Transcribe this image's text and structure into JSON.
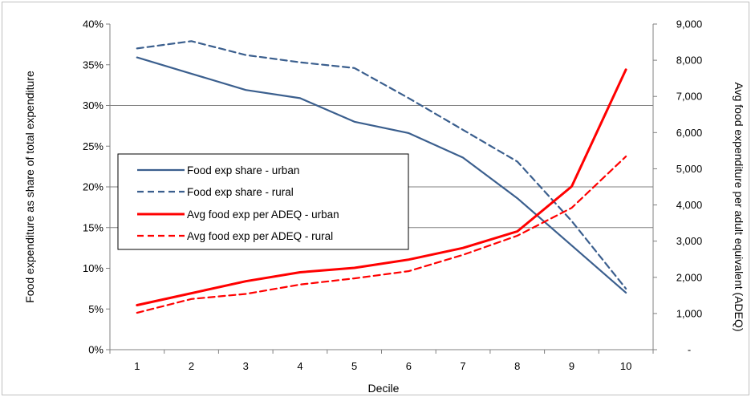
{
  "chart_data": {
    "type": "line",
    "title": "",
    "categories": [
      "1",
      "2",
      "3",
      "4",
      "5",
      "6",
      "7",
      "8",
      "9",
      "10"
    ],
    "xlabel": "Decile",
    "ylabel_left": "Food expenditure as share of total expenditure",
    "ylabel_right": "Avg food expenditure per adult equivalent (ADEQ)",
    "left_axis": {
      "ylim": [
        0,
        40
      ],
      "ticks": [
        0,
        5,
        10,
        15,
        20,
        25,
        30,
        35,
        40
      ],
      "tick_labels": [
        "0%",
        "5%",
        "10%",
        "15%",
        "20%",
        "25%",
        "30%",
        "35%",
        "40%"
      ]
    },
    "right_axis": {
      "ylim": [
        0,
        9000
      ],
      "ticks": [
        0,
        1000,
        2000,
        3000,
        4000,
        5000,
        6000,
        7000,
        8000,
        9000
      ],
      "tick_labels": [
        "-",
        "1,000",
        "2,000",
        "3,000",
        "4,000",
        "5,000",
        "6,000",
        "7,000",
        "8,000",
        "9,000"
      ]
    },
    "grid": "horizontal major lines on left axis at 15%, 20%, 30%",
    "legend_position": "left-middle",
    "series": [
      {
        "name": "Food exp share - urban",
        "axis": "left",
        "color": "#3b5f8e",
        "dash": "solid",
        "values": [
          35.9,
          33.9,
          31.9,
          30.9,
          28.0,
          26.6,
          23.6,
          18.6,
          12.8,
          7.0
        ]
      },
      {
        "name": "Food exp share - rural",
        "axis": "left",
        "color": "#3b5f8e",
        "dash": "dashed",
        "values": [
          37.0,
          37.9,
          36.2,
          35.3,
          34.6,
          30.9,
          27.0,
          23.1,
          15.8,
          7.5
        ]
      },
      {
        "name": "Avg food exp per ADEQ - urban",
        "axis": "right",
        "color": "#ff0000",
        "dash": "solid",
        "values": [
          1230,
          1560,
          1890,
          2140,
          2260,
          2490,
          2810,
          3270,
          4510,
          7740
        ]
      },
      {
        "name": "Avg food exp per ADEQ - rural",
        "axis": "right",
        "color": "#ff0000",
        "dash": "dashed",
        "values": [
          1020,
          1400,
          1540,
          1800,
          1970,
          2170,
          2620,
          3150,
          3920,
          5340
        ]
      }
    ]
  }
}
